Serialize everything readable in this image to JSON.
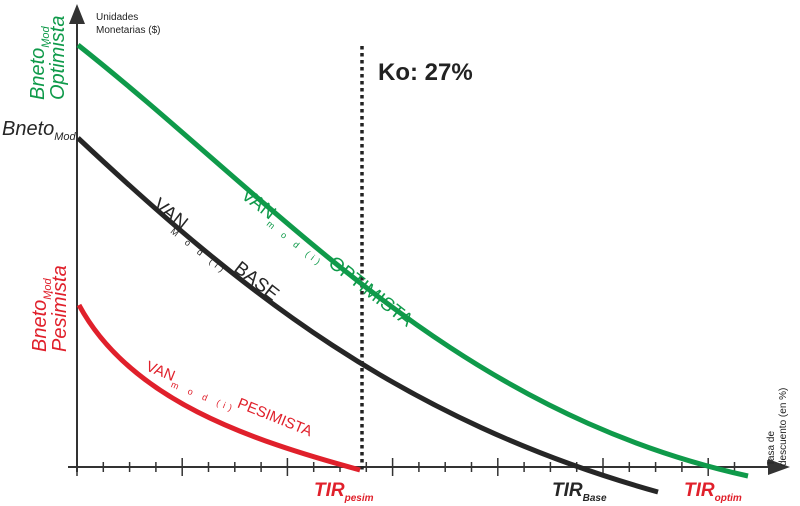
{
  "axes": {
    "y_label_line1": "Unidades",
    "y_label_line2": "Monetarias ($)",
    "x_label_line1": "Tasa de",
    "x_label_line2": "descuento (en %)"
  },
  "reference_line": {
    "label": "Ko: 27%",
    "value": 27
  },
  "y_axis_labels": {
    "optimista": {
      "main": "Bneto",
      "sub": "Mod",
      "line2": "Optimista"
    },
    "base": {
      "main": "Bneto",
      "sub": "Mod"
    },
    "pesimista": {
      "main": "Bneto",
      "sub": "Mod",
      "line2": "Pesimista"
    }
  },
  "curves": {
    "optimista": {
      "main": "VAN",
      "sub": "m o d (i)",
      "tail": "OPTIMISTA"
    },
    "base": {
      "main": "VAN",
      "sub": "M o d (i)",
      "tail": "BASE"
    },
    "pesimista": {
      "main": "VAN",
      "sub": "m o d (i)",
      "tail": "PESIMISTA"
    }
  },
  "tir_labels": {
    "pesim": {
      "main": "TIR",
      "sub": "pesim"
    },
    "base": {
      "main": "TIR",
      "sub": "Base"
    },
    "optim": {
      "main": "TIR",
      "sub": "optim"
    }
  },
  "colors": {
    "optimista": "#0f9a4a",
    "base": "#262626",
    "pesimista": "#e0202b",
    "axis": "#333333"
  }
}
